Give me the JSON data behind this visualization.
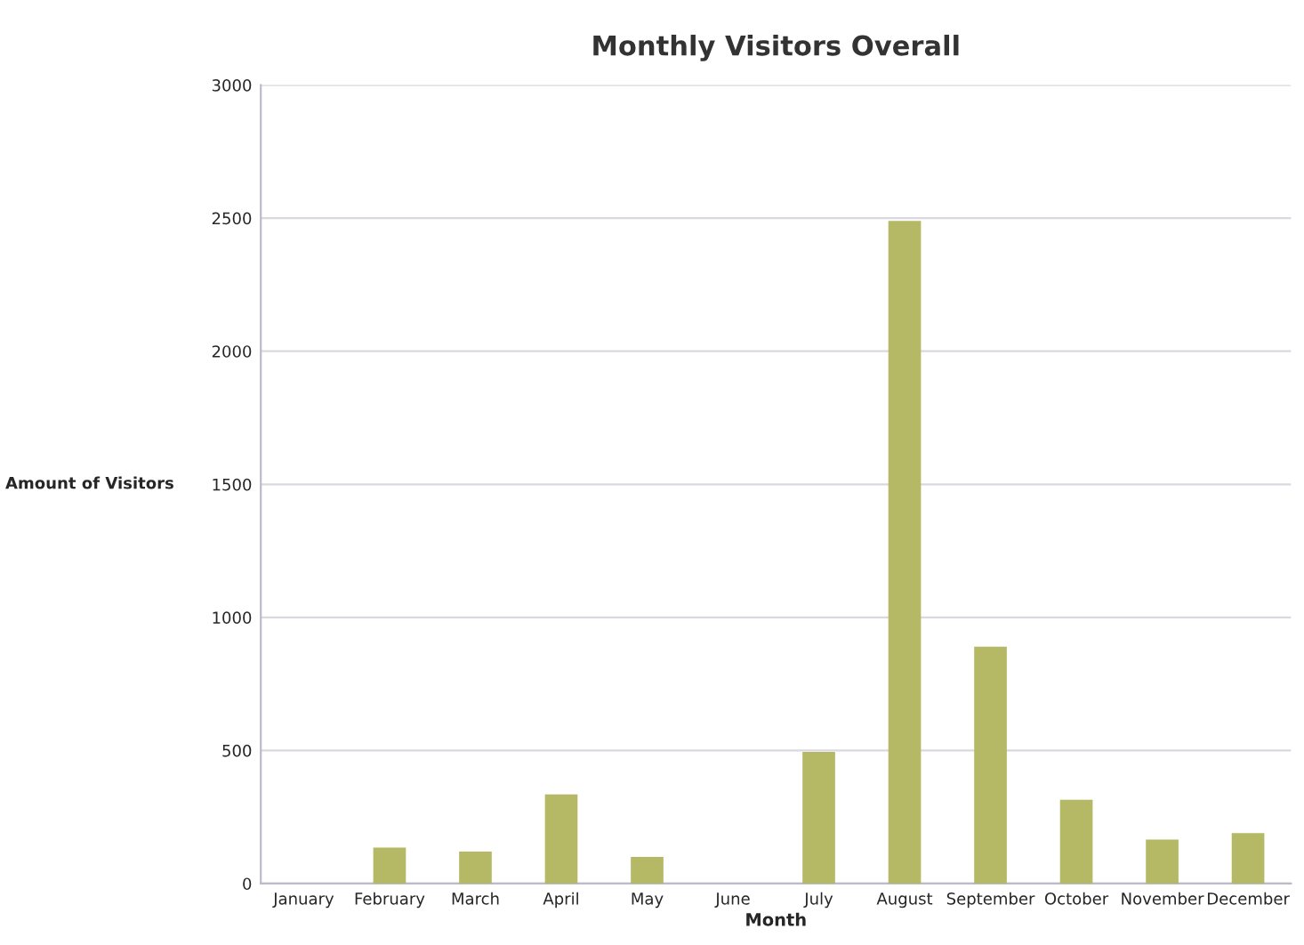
{
  "chart_data": {
    "type": "bar",
    "title": "Monthly Visitors Overall",
    "xlabel": "Month",
    "ylabel": "Amount of Visitors",
    "categories": [
      "January",
      "February",
      "March",
      "April",
      "May",
      "June",
      "July",
      "August",
      "September",
      "October",
      "November",
      "December"
    ],
    "values": [
      0,
      135,
      120,
      335,
      100,
      0,
      495,
      2490,
      890,
      315,
      165,
      190
    ],
    "color": "#b5b864",
    "ylim": [
      0,
      3000
    ],
    "yticks": [
      0,
      500,
      1000,
      1500,
      2000,
      2500,
      3000
    ],
    "grid": "y",
    "legend": false
  }
}
